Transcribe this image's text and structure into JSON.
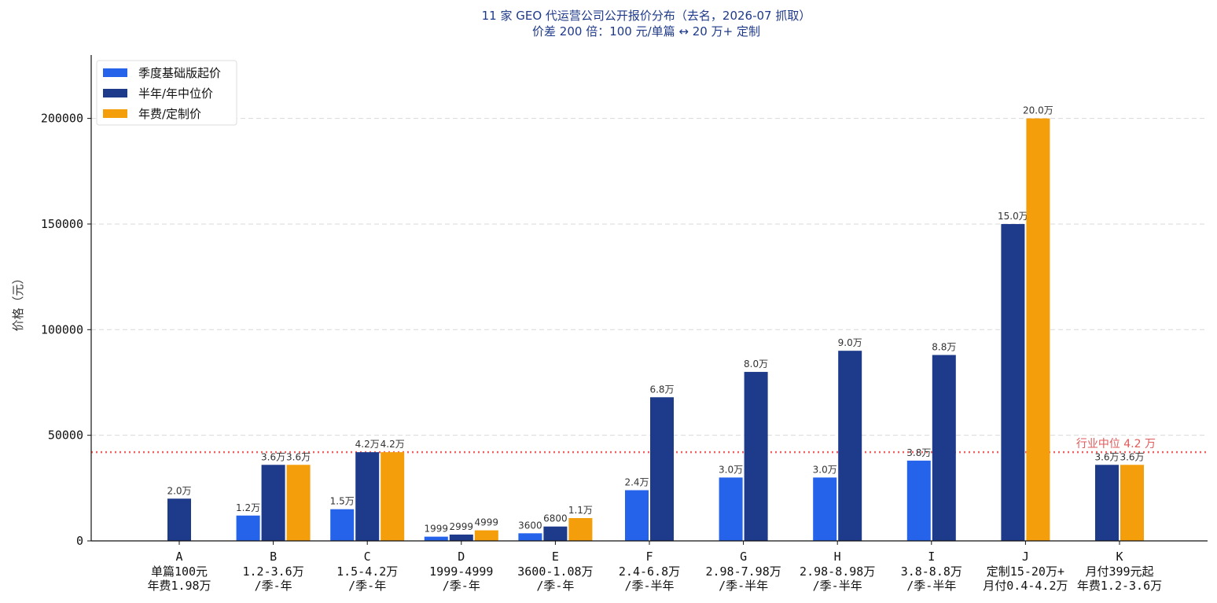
{
  "chart_data": {
    "type": "bar",
    "title": "11 家 GEO 代运营公司公开报价分布（去名，2026-07 抓取）",
    "subtitle": "价差 200 倍：100 元/单篇 ↔ 20 万+ 定制",
    "ylabel": "价格（元）",
    "ylim": [
      0,
      230000
    ],
    "yticks": [
      0,
      50000,
      100000,
      150000,
      200000
    ],
    "grid": true,
    "legend_position": "top-left",
    "categories": [
      "A",
      "B",
      "C",
      "D",
      "E",
      "F",
      "G",
      "H",
      "I",
      "J",
      "K"
    ],
    "category_notes": [
      [
        "单篇100元",
        "年费1.98万"
      ],
      [
        "1.2-3.6万",
        "/季-年"
      ],
      [
        "1.5-4.2万",
        "/季-年"
      ],
      [
        "1999-4999",
        "/季-年"
      ],
      [
        "3600-1.08万",
        "/季-年"
      ],
      [
        "2.4-6.8万",
        "/季-半年"
      ],
      [
        "2.98-7.98万",
        "/季-半年"
      ],
      [
        "2.98-8.98万",
        "/季-半年"
      ],
      [
        "3.8-8.8万",
        "/季-半年"
      ],
      [
        "定制15-20万+",
        "月付0.4-4.2万"
      ],
      [
        "月付399元起",
        "年费1.2-3.6万"
      ]
    ],
    "series": [
      {
        "name": "季度基础版起价",
        "color": "#2563eb",
        "values": [
          null,
          12000,
          15000,
          1999,
          3600,
          24000,
          30000,
          30000,
          38000,
          null,
          null
        ],
        "labels": [
          null,
          "1.2万",
          "1.5万",
          "1999",
          "3600",
          "2.4万",
          "3.0万",
          "3.0万",
          "3.8万",
          null,
          null
        ]
      },
      {
        "name": "半年/年中位价",
        "color": "#1e3a8a",
        "values": [
          20000,
          36000,
          42000,
          2999,
          6800,
          68000,
          80000,
          90000,
          88000,
          150000,
          36000
        ],
        "labels": [
          "2.0万",
          "3.6万",
          "4.2万",
          "2999",
          "6800",
          "6.8万",
          "8.0万",
          "9.0万",
          "8.8万",
          "15.0万",
          "3.6万"
        ]
      },
      {
        "name": "年费/定制价",
        "color": "#f59e0b",
        "values": [
          null,
          36000,
          42000,
          4999,
          10800,
          null,
          null,
          null,
          null,
          200000,
          36000
        ],
        "labels": [
          null,
          "3.6万",
          "4.2万",
          "4999",
          "1.1万",
          null,
          null,
          null,
          null,
          "20.0万",
          "3.6万"
        ]
      }
    ],
    "reference_line": {
      "value": 42000,
      "label": "行业中位 4.2 万",
      "color": "#ef4444"
    }
  }
}
